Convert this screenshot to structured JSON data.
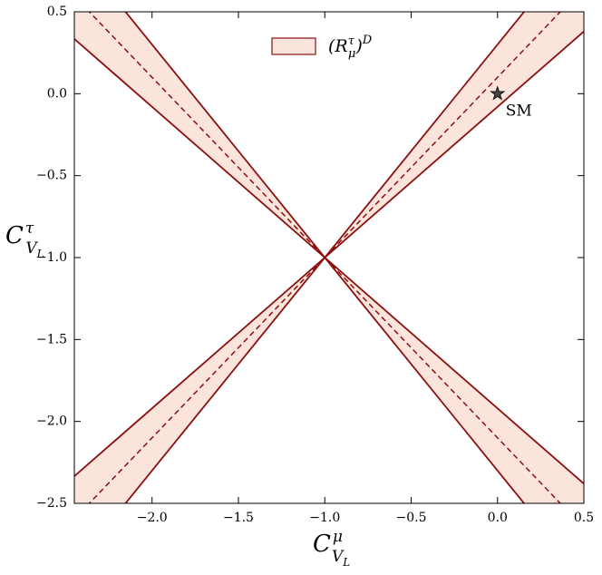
{
  "chart_data": {
    "type": "band-lines",
    "xlim": [
      -2.45,
      0.5
    ],
    "ylim": [
      -2.5,
      0.5
    ],
    "xticks": [
      {
        "value": -2.0,
        "label": "−2.0"
      },
      {
        "value": -1.5,
        "label": "−1.5"
      },
      {
        "value": -1.0,
        "label": "−1.0"
      },
      {
        "value": -0.5,
        "label": "−0.5"
      },
      {
        "value": 0.0,
        "label": "0.0"
      },
      {
        "value": 0.5,
        "label": "0.5"
      }
    ],
    "yticks": [
      {
        "value": 0.5,
        "label": "0.5"
      },
      {
        "value": 0.0,
        "label": "0.0"
      },
      {
        "value": -0.5,
        "label": "−0.5"
      },
      {
        "value": -1.0,
        "label": "−1.0"
      },
      {
        "value": -1.5,
        "label": "−1.5"
      },
      {
        "value": -2.0,
        "label": "−2.0"
      },
      {
        "value": -2.5,
        "label": "−2.5"
      }
    ],
    "xlabel": {
      "base": "C",
      "sup": "μ",
      "sub": "V",
      "subsub": "L"
    },
    "ylabel": {
      "base": "C",
      "sup": "τ",
      "sub": "V",
      "subsub": "L"
    },
    "legend": {
      "open": "(R",
      "sup": "τ",
      "sub": "μ",
      "close": ")",
      "outer_sup": "D"
    },
    "pivot": {
      "x": -1,
      "y": -1
    },
    "band": {
      "slope_low": 0.92,
      "slope_high": 1.3,
      "slope_center": 1.1,
      "fill": "#fbe4dc",
      "color": "#8b0f0f"
    },
    "sm_point": {
      "x": 0,
      "y": 0,
      "label": "SM"
    }
  }
}
